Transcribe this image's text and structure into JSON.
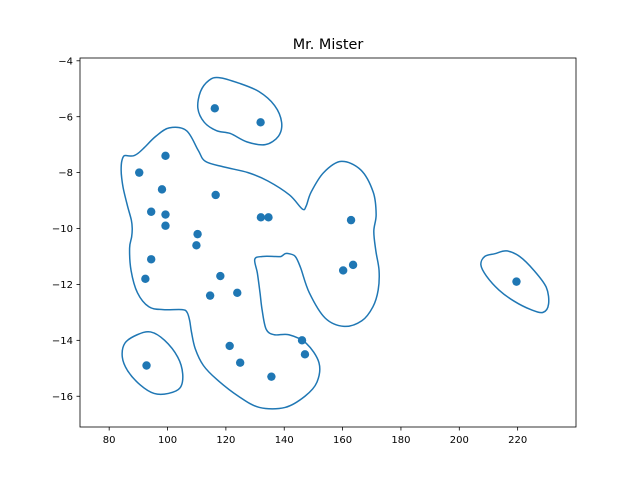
{
  "chart_data": {
    "type": "scatter",
    "title": "Mr. Mister",
    "xlabel": "",
    "ylabel": "",
    "xlim": [
      70,
      240
    ],
    "ylim": [
      -17.1,
      -3.9
    ],
    "xticks": [
      80,
      100,
      120,
      140,
      160,
      180,
      200,
      220
    ],
    "yticks": [
      -16,
      -14,
      -12,
      -10,
      -8,
      -6,
      -4
    ],
    "xtick_labels": [
      "80",
      "100",
      "120",
      "140",
      "160",
      "180",
      "200",
      "220"
    ],
    "ytick_labels": [
      "−16",
      "−14",
      "−12",
      "−10",
      "−8",
      "−6",
      "−4"
    ],
    "grid": false,
    "point_color": "#1f77b4",
    "contour_color": "#1f77b4",
    "points": [
      {
        "x": 116.2,
        "y": -5.7
      },
      {
        "x": 131.9,
        "y": -6.2
      },
      {
        "x": 99.3,
        "y": -7.4
      },
      {
        "x": 90.3,
        "y": -8.0
      },
      {
        "x": 98.1,
        "y": -8.6
      },
      {
        "x": 116.5,
        "y": -8.8
      },
      {
        "x": 94.4,
        "y": -9.4
      },
      {
        "x": 99.3,
        "y": -9.5
      },
      {
        "x": 132.0,
        "y": -9.6
      },
      {
        "x": 134.6,
        "y": -9.6
      },
      {
        "x": 162.9,
        "y": -9.7
      },
      {
        "x": 99.3,
        "y": -9.9
      },
      {
        "x": 110.3,
        "y": -10.2
      },
      {
        "x": 109.9,
        "y": -10.6
      },
      {
        "x": 94.4,
        "y": -11.1
      },
      {
        "x": 163.6,
        "y": -11.3
      },
      {
        "x": 160.2,
        "y": -11.5
      },
      {
        "x": 118.1,
        "y": -11.7
      },
      {
        "x": 92.4,
        "y": -11.8
      },
      {
        "x": 219.6,
        "y": -11.9
      },
      {
        "x": 123.9,
        "y": -12.3
      },
      {
        "x": 114.6,
        "y": -12.4
      },
      {
        "x": 146.1,
        "y": -14.0
      },
      {
        "x": 121.3,
        "y": -14.2
      },
      {
        "x": 147.1,
        "y": -14.5
      },
      {
        "x": 124.9,
        "y": -14.8
      },
      {
        "x": 92.8,
        "y": -14.9
      },
      {
        "x": 135.6,
        "y": -15.3
      }
    ],
    "contours": [
      [
        [
          100.6,
          -6.4
        ],
        [
          106.5,
          -6.5
        ],
        [
          110.5,
          -7.2
        ],
        [
          113.0,
          -7.6
        ],
        [
          119.4,
          -7.8
        ],
        [
          127.6,
          -8.0
        ],
        [
          134.4,
          -8.3
        ],
        [
          141.8,
          -8.8
        ],
        [
          146.2,
          -9.3
        ],
        [
          147.5,
          -9.2
        ],
        [
          149.2,
          -8.7
        ],
        [
          153.5,
          -8.0
        ],
        [
          159.5,
          -7.6
        ],
        [
          166.2,
          -7.9
        ],
        [
          170.5,
          -8.7
        ],
        [
          171.5,
          -9.5
        ],
        [
          170.7,
          -10.1
        ],
        [
          171.4,
          -10.8
        ],
        [
          172.5,
          -11.5
        ],
        [
          172.2,
          -12.2
        ],
        [
          170.4,
          -12.8
        ],
        [
          166.6,
          -13.3
        ],
        [
          160.5,
          -13.5
        ],
        [
          154.0,
          -13.2
        ],
        [
          148.6,
          -12.3
        ],
        [
          145.6,
          -11.4
        ],
        [
          143.8,
          -11.0
        ],
        [
          141.6,
          -10.9
        ],
        [
          140.3,
          -10.9
        ],
        [
          138.9,
          -11.0
        ],
        [
          137.0,
          -11.0
        ],
        [
          132.5,
          -11.0
        ],
        [
          129.9,
          -11.1
        ],
        [
          130.8,
          -11.6
        ],
        [
          131.7,
          -12.3
        ],
        [
          132.4,
          -12.9
        ],
        [
          133.8,
          -13.6
        ],
        [
          136.6,
          -13.8
        ],
        [
          141.6,
          -13.8
        ],
        [
          147.5,
          -14.1
        ],
        [
          151.9,
          -14.8
        ],
        [
          151.2,
          -15.5
        ],
        [
          147.1,
          -16.0
        ],
        [
          140.3,
          -16.4
        ],
        [
          131.5,
          -16.4
        ],
        [
          124.3,
          -16.0
        ],
        [
          116.9,
          -15.4
        ],
        [
          112.3,
          -14.9
        ],
        [
          109.5,
          -14.3
        ],
        [
          108.2,
          -13.7
        ],
        [
          107.6,
          -13.3
        ],
        [
          106.7,
          -13.0
        ],
        [
          105.0,
          -12.9
        ],
        [
          98.5,
          -12.9
        ],
        [
          93.6,
          -12.8
        ],
        [
          89.7,
          -12.3
        ],
        [
          87.5,
          -11.5
        ],
        [
          87.0,
          -10.7
        ],
        [
          87.7,
          -10.3
        ],
        [
          87.9,
          -10.0
        ],
        [
          87.6,
          -9.7
        ],
        [
          86.3,
          -9.2
        ],
        [
          84.9,
          -8.6
        ],
        [
          84.3,
          -8.2
        ],
        [
          84.1,
          -7.9
        ],
        [
          84.3,
          -7.6
        ],
        [
          85.1,
          -7.4
        ],
        [
          86.6,
          -7.4
        ],
        [
          88.3,
          -7.4
        ],
        [
          90.0,
          -7.3
        ],
        [
          92.1,
          -7.1
        ],
        [
          96.0,
          -6.7
        ],
        [
          100.6,
          -6.4
        ]
      ],
      [
        [
          117.6,
          -4.6
        ],
        [
          124.5,
          -4.8
        ],
        [
          131.3,
          -5.1
        ],
        [
          136.7,
          -5.6
        ],
        [
          139.1,
          -6.2
        ],
        [
          138.0,
          -6.7
        ],
        [
          133.5,
          -7.0
        ],
        [
          127.2,
          -6.9
        ],
        [
          121.5,
          -6.6
        ],
        [
          116.8,
          -6.5
        ],
        [
          112.6,
          -6.2
        ],
        [
          110.4,
          -5.7
        ],
        [
          111.3,
          -5.1
        ],
        [
          114.2,
          -4.7
        ],
        [
          117.6,
          -4.6
        ]
      ],
      [
        [
          212.2,
          -10.9
        ],
        [
          216.2,
          -10.8
        ],
        [
          220.7,
          -11.0
        ],
        [
          225.6,
          -11.5
        ],
        [
          229.8,
          -12.1
        ],
        [
          230.6,
          -12.7
        ],
        [
          228.7,
          -13.0
        ],
        [
          224.5,
          -12.9
        ],
        [
          218.8,
          -12.6
        ],
        [
          213.6,
          -12.2
        ],
        [
          209.3,
          -11.7
        ],
        [
          207.4,
          -11.3
        ],
        [
          208.7,
          -11.0
        ],
        [
          212.2,
          -10.9
        ]
      ],
      [
        [
          89.6,
          -13.8
        ],
        [
          94.2,
          -13.7
        ],
        [
          99.0,
          -14.0
        ],
        [
          103.5,
          -14.6
        ],
        [
          105.2,
          -15.2
        ],
        [
          104.3,
          -15.7
        ],
        [
          100.3,
          -15.9
        ],
        [
          95.4,
          -15.9
        ],
        [
          90.7,
          -15.6
        ],
        [
          86.4,
          -15.1
        ],
        [
          84.5,
          -14.6
        ],
        [
          85.4,
          -14.1
        ],
        [
          89.6,
          -13.8
        ]
      ]
    ]
  }
}
